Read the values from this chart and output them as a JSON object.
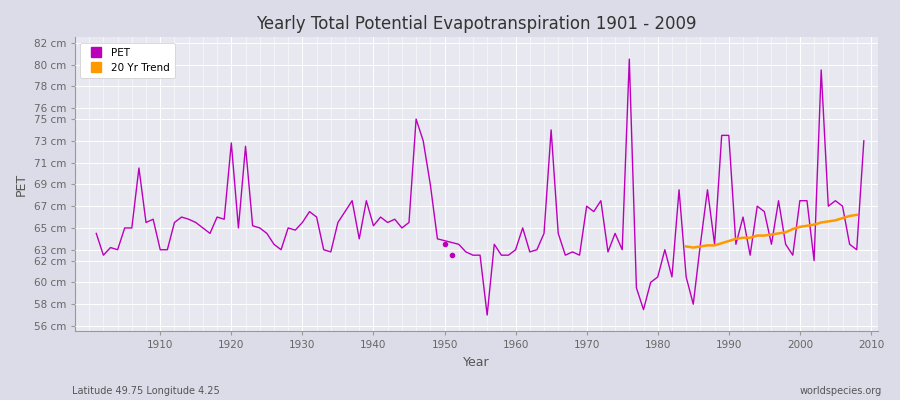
{
  "title": "Yearly Total Potential Evapotranspiration 1901 - 2009",
  "xlabel": "Year",
  "ylabel": "PET",
  "subtitle": "Latitude 49.75 Longitude 4.25",
  "watermark": "worldspecies.org",
  "pet_color": "#bb00bb",
  "trend_color": "#ff9900",
  "bg_color": "#e0e0e8",
  "plot_bg_color": "#e8e8f0",
  "grid_color": "#ffffff",
  "years": [
    1901,
    1902,
    1903,
    1904,
    1905,
    1906,
    1907,
    1908,
    1909,
    1910,
    1911,
    1912,
    1913,
    1914,
    1915,
    1916,
    1917,
    1918,
    1919,
    1920,
    1921,
    1922,
    1923,
    1924,
    1925,
    1926,
    1927,
    1928,
    1929,
    1930,
    1931,
    1932,
    1933,
    1934,
    1935,
    1936,
    1937,
    1938,
    1939,
    1940,
    1941,
    1942,
    1943,
    1944,
    1945,
    1946,
    1947,
    1948,
    1949,
    1952,
    1953,
    1954,
    1955,
    1956,
    1957,
    1958,
    1959,
    1960,
    1961,
    1962,
    1963,
    1964,
    1965,
    1966,
    1967,
    1968,
    1969,
    1970,
    1971,
    1972,
    1973,
    1974,
    1975,
    1976,
    1977,
    1978,
    1979,
    1980,
    1981,
    1982,
    1983,
    1984,
    1985,
    1986,
    1987,
    1988,
    1989,
    1990,
    1991,
    1992,
    1993,
    1994,
    1995,
    1996,
    1997,
    1998,
    1999,
    2000,
    2001,
    2002,
    2003,
    2004,
    2005,
    2006,
    2007,
    2008,
    2009
  ],
  "pet_values": [
    64.5,
    62.5,
    63.2,
    63.0,
    65.0,
    65.0,
    70.5,
    65.5,
    65.8,
    63.0,
    63.0,
    65.5,
    66.0,
    65.8,
    65.5,
    65.0,
    64.5,
    66.0,
    65.8,
    72.8,
    65.0,
    72.5,
    65.2,
    65.0,
    64.5,
    63.5,
    63.0,
    65.0,
    64.8,
    65.5,
    66.5,
    66.0,
    63.0,
    62.8,
    65.5,
    66.5,
    67.5,
    64.0,
    67.5,
    65.2,
    66.0,
    65.5,
    65.8,
    65.0,
    65.5,
    75.0,
    73.0,
    69.0,
    64.0,
    63.5,
    62.8,
    62.5,
    62.5,
    57.0,
    63.5,
    62.5,
    62.5,
    63.0,
    65.0,
    62.8,
    63.0,
    64.5,
    74.0,
    64.5,
    62.5,
    62.8,
    62.5,
    67.0,
    66.5,
    67.5,
    62.8,
    64.5,
    63.0,
    80.5,
    59.5,
    57.5,
    60.0,
    60.5,
    63.0,
    60.5,
    68.5,
    60.5,
    58.0,
    63.5,
    68.5,
    63.5,
    73.5,
    73.5,
    63.5,
    66.0,
    62.5,
    67.0,
    66.5,
    63.5,
    67.5,
    63.5,
    62.5,
    67.5,
    67.5,
    62.0,
    79.5,
    67.0,
    67.5,
    67.0,
    63.5,
    63.0,
    73.0
  ],
  "isolated_years": [
    1950,
    1951
  ],
  "isolated_values": [
    63.5,
    62.5
  ],
  "trend_years": [
    1984,
    1985,
    1986,
    1987,
    1988,
    1989,
    1990,
    1991,
    1992,
    1993,
    1994,
    1995,
    1996,
    1997,
    1998,
    1999,
    2000,
    2001,
    2002,
    2003,
    2004,
    2005,
    2006,
    2007,
    2008
  ],
  "trend_values": [
    63.3,
    63.2,
    63.3,
    63.4,
    63.4,
    63.6,
    63.8,
    64.0,
    64.1,
    64.1,
    64.3,
    64.3,
    64.4,
    64.5,
    64.6,
    64.9,
    65.1,
    65.2,
    65.3,
    65.5,
    65.6,
    65.7,
    65.9,
    66.1,
    66.2
  ],
  "ylim": [
    55.5,
    82.5
  ],
  "yticks": [
    56,
    58,
    60,
    62,
    63,
    65,
    67,
    69,
    71,
    73,
    75,
    76,
    78,
    80,
    82
  ],
  "xlim": [
    1898,
    2011
  ]
}
